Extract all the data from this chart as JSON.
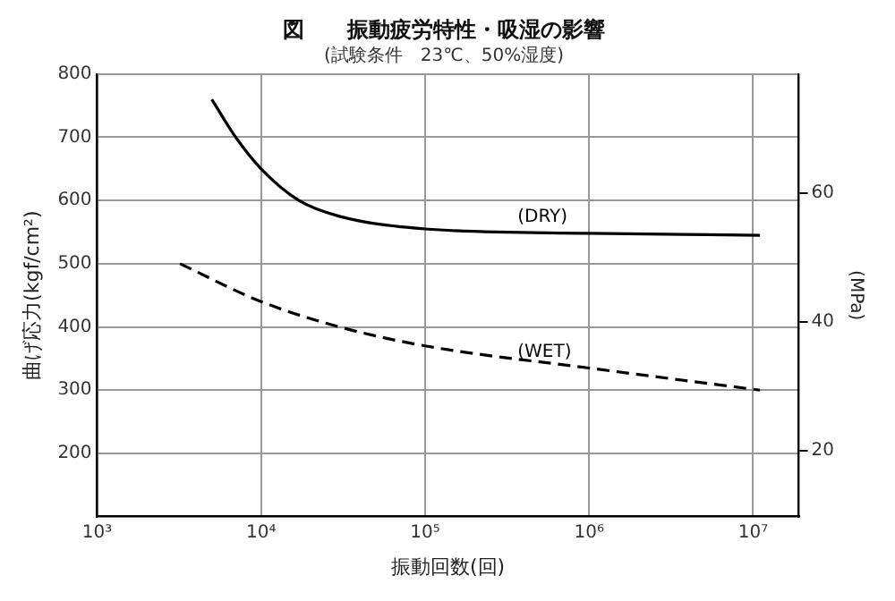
{
  "chart_data": {
    "type": "line",
    "title": "図　　振動疲労特性・吸湿の影響",
    "subtitle": "(試験条件　23℃、50%湿度)",
    "xlabel": "振動回数(回)",
    "ylabel": "曲げ応力(kgf/cm²)",
    "y2label": "(MPa)",
    "log": "x",
    "grid": true,
    "legend": false,
    "marker": "none",
    "xlim": [
      1000,
      19000000
    ],
    "xticks": [
      {
        "value": 1000,
        "label": "10³"
      },
      {
        "value": 10000,
        "label": "10⁴"
      },
      {
        "value": 100000,
        "label": "10⁵"
      },
      {
        "value": 1000000,
        "label": "10⁶"
      },
      {
        "value": 10000000,
        "label": "10⁷"
      }
    ],
    "ylim": [
      100,
      800
    ],
    "yticks": [
      200,
      300,
      400,
      500,
      600,
      700,
      800
    ],
    "y2lim": [
      9.81,
      78.45
    ],
    "y2ticks": [
      20,
      40,
      60
    ],
    "series": [
      {
        "name": "(DRY)",
        "color": "#000000",
        "line_style": "solid",
        "x": [
          5000,
          7000,
          10000,
          17000,
          30000,
          100000,
          1000000,
          11000000
        ],
        "values": [
          760,
          700,
          650,
          600,
          575,
          555,
          548,
          545
        ]
      },
      {
        "name": "(WET)",
        "color": "#000000",
        "line_style": "dashed",
        "x": [
          3200,
          10000,
          30000,
          100000,
          1000000,
          11000000
        ],
        "values": [
          500,
          440,
          400,
          370,
          335,
          300
        ]
      }
    ]
  }
}
